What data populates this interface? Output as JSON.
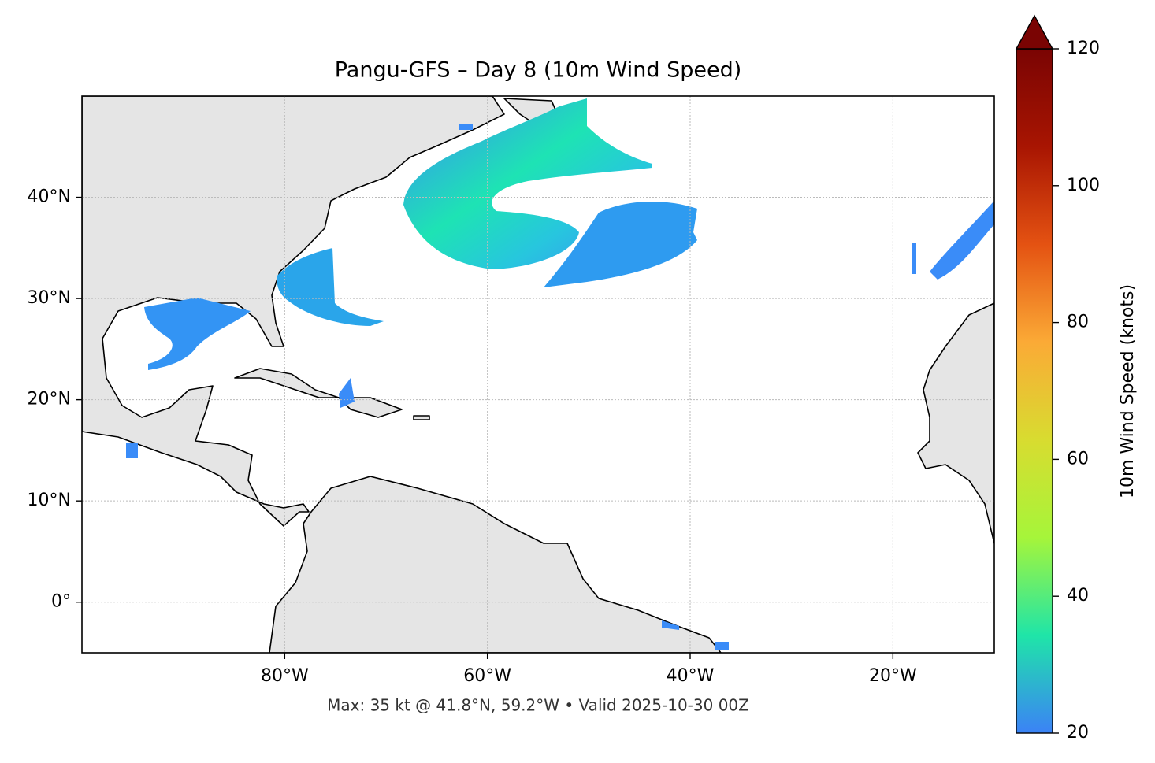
{
  "chart_data": {
    "type": "map",
    "title": "Pangu-GFS – Day 8 (10m Wind Speed)",
    "xlim": [
      -100,
      -10
    ],
    "ylim": [
      -5,
      50
    ],
    "xticks": [
      {
        "value": -80,
        "label": "80°W"
      },
      {
        "value": -60,
        "label": "60°W"
      },
      {
        "value": -40,
        "label": "40°W"
      },
      {
        "value": -20,
        "label": "20°W"
      }
    ],
    "yticks": [
      {
        "value": 0,
        "label": "0°"
      },
      {
        "value": 10,
        "label": "10°N"
      },
      {
        "value": 20,
        "label": "20°N"
      },
      {
        "value": 30,
        "label": "30°N"
      },
      {
        "value": 40,
        "label": "40°N"
      }
    ],
    "grid": true,
    "colorbar_label": "10m Wind Speed (knots)",
    "colorbar_lim": [
      20,
      120
    ],
    "colorbar_ticks": [
      20,
      40,
      60,
      80,
      100,
      120
    ],
    "colorbar_colors": [
      "#3b82f6",
      "#1fe5a8",
      "#a6f53a",
      "#d8dc30",
      "#fbaa36",
      "#e45212",
      "#a81502",
      "#7a0403"
    ],
    "footnote": "Max: 35 kt @ 41.8°N, 59.2°W • Valid 2025-10-30 00Z"
  }
}
